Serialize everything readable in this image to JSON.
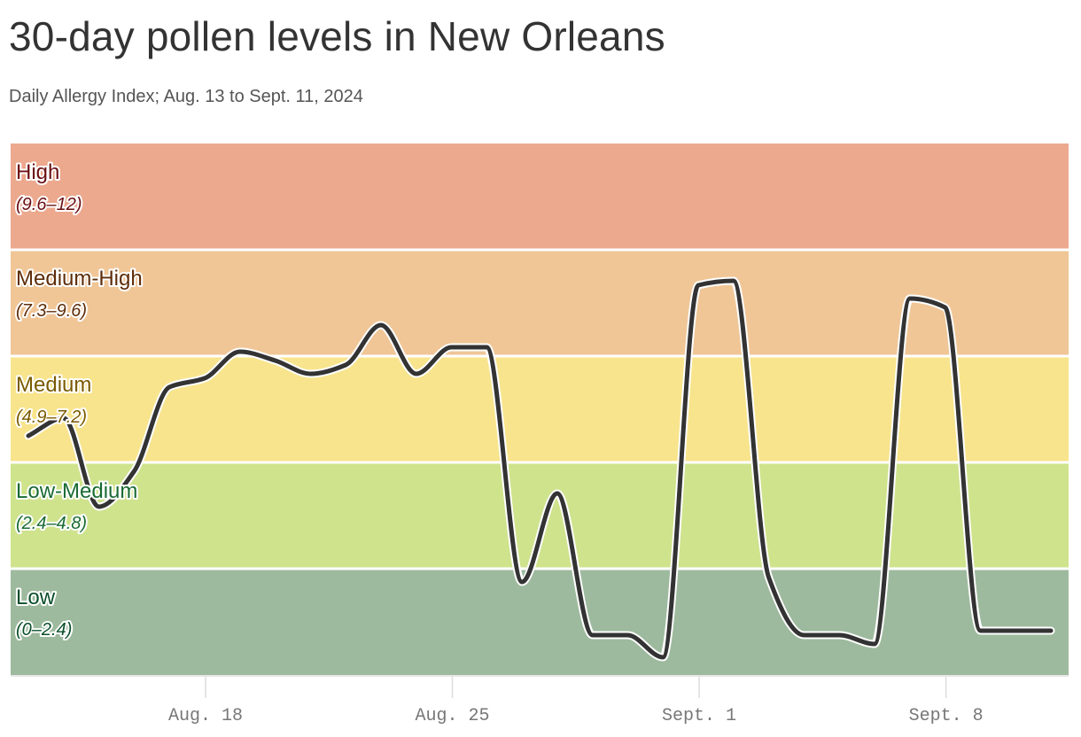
{
  "title": "30-day pollen levels in New Orleans",
  "subtitle": "Daily Allergy Index; Aug. 13 to Sept. 11, 2024",
  "chart_data": {
    "type": "line",
    "x_start_date": "2024-08-13",
    "x": [
      "2024-08-13",
      "2024-08-14",
      "2024-08-15",
      "2024-08-16",
      "2024-08-17",
      "2024-08-18",
      "2024-08-19",
      "2024-08-20",
      "2024-08-21",
      "2024-08-22",
      "2024-08-23",
      "2024-08-24",
      "2024-08-25",
      "2024-08-26",
      "2024-08-27",
      "2024-08-28",
      "2024-08-29",
      "2024-08-30",
      "2024-08-31",
      "2024-09-01",
      "2024-09-02",
      "2024-09-03",
      "2024-09-04",
      "2024-09-05",
      "2024-09-06",
      "2024-09-07",
      "2024-09-08",
      "2024-09-09",
      "2024-09-10",
      "2024-09-11"
    ],
    "series": [
      {
        "values": [
          5.4,
          5.8,
          3.8,
          4.6,
          6.5,
          6.7,
          7.3,
          7.1,
          6.8,
          7.0,
          7.9,
          6.8,
          7.4,
          7.4,
          2.1,
          4.1,
          0.9,
          0.9,
          0.4,
          8.8,
          8.9,
          2.2,
          0.9,
          0.9,
          0.7,
          8.5,
          8.3,
          1.0,
          1.0,
          1.0
        ]
      }
    ],
    "ylim": [
      0,
      12
    ],
    "bands": [
      {
        "label": "High",
        "range": "(9.6–12)",
        "from": 9.6,
        "to": 12,
        "fill": "#eca98e",
        "text_color": "#6b0f12"
      },
      {
        "label": "Medium-High",
        "range": "(7.3–9.6)",
        "from": 7.2,
        "to": 9.6,
        "fill": "#f0c697",
        "text_color": "#5e2d0a"
      },
      {
        "label": "Medium",
        "range": "(4.9–7.2)",
        "from": 4.8,
        "to": 7.2,
        "fill": "#f8e48d",
        "text_color": "#7a5a00"
      },
      {
        "label": "Low-Medium",
        "range": "(2.4–4.8)",
        "from": 2.4,
        "to": 4.8,
        "fill": "#cfe38d",
        "text_color": "#1a6b33"
      },
      {
        "label": "Low",
        "range": "(0–2.4)",
        "from": 0,
        "to": 2.4,
        "fill": "#9eba9e",
        "text_color": "#0b4f2a"
      }
    ],
    "x_ticks": [
      {
        "date": "2024-08-18",
        "label": "Aug. 18"
      },
      {
        "date": "2024-08-25",
        "label": "Aug. 25"
      },
      {
        "date": "2024-09-01",
        "label": "Sept. 1"
      },
      {
        "date": "2024-09-08",
        "label": "Sept. 8"
      }
    ],
    "line_color": "#333333",
    "grid": false,
    "legend": "none"
  }
}
